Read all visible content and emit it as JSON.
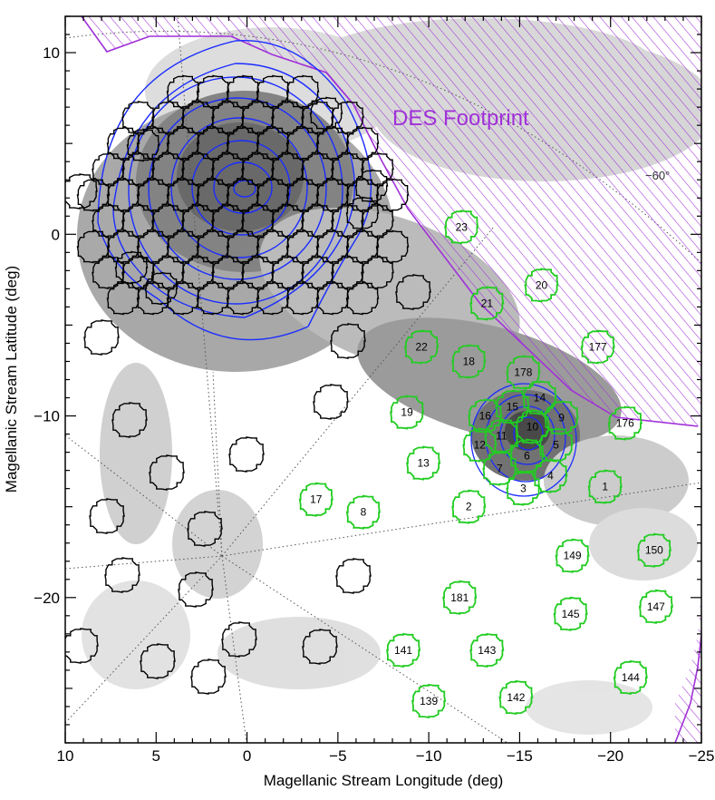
{
  "chart_data": {
    "type": "scatter",
    "xlabel": "Magellanic Stream Longitude (deg)",
    "ylabel": "Magellanic Stream Latitude (deg)",
    "xlim": [
      10,
      -25
    ],
    "ylim": [
      -28,
      12
    ],
    "x_ticks": [
      10,
      5,
      0,
      -5,
      -10,
      -15,
      -20,
      -25
    ],
    "x_tick_labels": [
      "10",
      "5",
      "0",
      "−5",
      "−10",
      "−15",
      "−20",
      "−25"
    ],
    "y_ticks": [
      10,
      0,
      -10,
      -20
    ],
    "y_tick_labels": [
      "10",
      "0",
      "−10",
      "−20"
    ],
    "annotation": "DES Footprint",
    "grid_label": "−60°",
    "colors": {
      "des": "#a030d8",
      "contour": "#1a2cff",
      "labeled_fields": "#22cc22",
      "other_fields": "#000000",
      "grid": "#555555"
    },
    "labeled_fields": [
      {
        "label": "23",
        "x": -11.8,
        "y": 0.4
      },
      {
        "label": "21",
        "x": -13.2,
        "y": -3.8
      },
      {
        "label": "20",
        "x": -16.2,
        "y": -2.8
      },
      {
        "label": "22",
        "x": -9.6,
        "y": -6.2
      },
      {
        "label": "18",
        "x": -12.2,
        "y": -7.0
      },
      {
        "label": "177",
        "x": -19.3,
        "y": -6.2
      },
      {
        "label": "178",
        "x": -15.2,
        "y": -7.6
      },
      {
        "label": "19",
        "x": -8.8,
        "y": -9.8
      },
      {
        "label": "15",
        "x": -14.6,
        "y": -9.5
      },
      {
        "label": "14",
        "x": -16.1,
        "y": -9.0
      },
      {
        "label": "16",
        "x": -13.1,
        "y": -10.0
      },
      {
        "label": "9",
        "x": -17.3,
        "y": -10.1
      },
      {
        "label": "176",
        "x": -20.8,
        "y": -10.4
      },
      {
        "label": "11",
        "x": -14.0,
        "y": -11.1
      },
      {
        "label": "10",
        "x": -15.7,
        "y": -10.6
      },
      {
        "label": "12",
        "x": -12.8,
        "y": -11.6
      },
      {
        "label": "5",
        "x": -17.0,
        "y": -11.6
      },
      {
        "label": "6",
        "x": -15.4,
        "y": -12.2
      },
      {
        "label": "13",
        "x": -9.7,
        "y": -12.6
      },
      {
        "label": "7",
        "x": -13.9,
        "y": -12.9
      },
      {
        "label": "4",
        "x": -16.7,
        "y": -13.3
      },
      {
        "label": "3",
        "x": -15.2,
        "y": -14.0
      },
      {
        "label": "1",
        "x": -19.7,
        "y": -13.9
      },
      {
        "label": "17",
        "x": -3.8,
        "y": -14.6
      },
      {
        "label": "2",
        "x": -12.2,
        "y": -15.0
      },
      {
        "label": "8",
        "x": -6.4,
        "y": -15.3
      },
      {
        "label": "149",
        "x": -17.9,
        "y": -17.7
      },
      {
        "label": "150",
        "x": -22.4,
        "y": -17.4
      },
      {
        "label": "181",
        "x": -11.7,
        "y": -20.0
      },
      {
        "label": "145",
        "x": -17.8,
        "y": -20.9
      },
      {
        "label": "147",
        "x": -22.5,
        "y": -20.5
      },
      {
        "label": "141",
        "x": -8.6,
        "y": -22.9
      },
      {
        "label": "143",
        "x": -13.2,
        "y": -22.9
      },
      {
        "label": "144",
        "x": -21.1,
        "y": -24.4
      },
      {
        "label": "139",
        "x": -10.0,
        "y": -25.7
      },
      {
        "label": "142",
        "x": -14.8,
        "y": -25.5
      }
    ]
  }
}
